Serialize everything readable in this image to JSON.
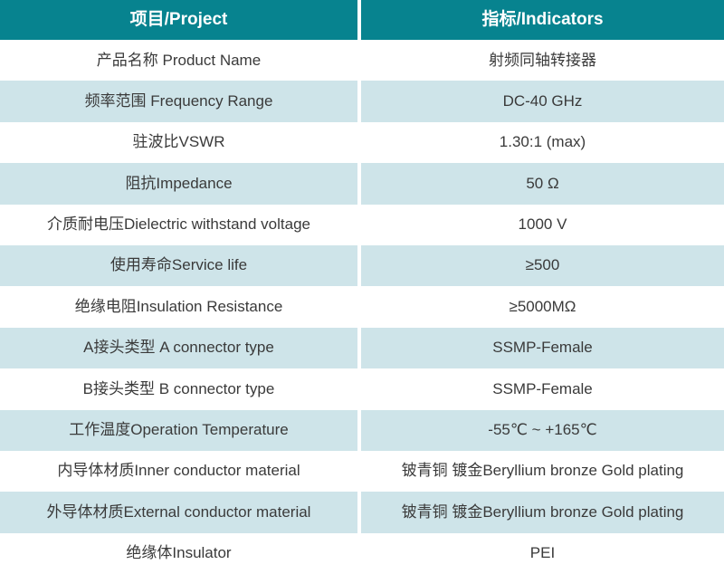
{
  "table": {
    "header": {
      "project": "项目/Project",
      "indicators": "指标/Indicators"
    },
    "rows": [
      {
        "project": "产品名称 Product Name",
        "indicator": "射频同轴转接器"
      },
      {
        "project": "频率范围 Frequency Range",
        "indicator": "DC-40 GHz"
      },
      {
        "project": "驻波比VSWR",
        "indicator": "1.30:1 (max)"
      },
      {
        "project": "阻抗Impedance",
        "indicator": "50 Ω"
      },
      {
        "project": "介质耐电压Dielectric withstand voltage",
        "indicator": "1000 V"
      },
      {
        "project": "使用寿命Service life",
        "indicator": "≥500"
      },
      {
        "project": "绝缘电阻Insulation Resistance",
        "indicator": "≥5000MΩ"
      },
      {
        "project": "A接头类型 A connector type",
        "indicator": "SSMP-Female"
      },
      {
        "project": "B接头类型 B connector type",
        "indicator": "SSMP-Female"
      },
      {
        "project": "工作温度Operation Temperature",
        "indicator": "-55℃ ~ +165℃"
      },
      {
        "project": "内导体材质Inner conductor material",
        "indicator": "铍青铜 镀金Beryllium bronze Gold plating"
      },
      {
        "project": "外导体材质External conductor material",
        "indicator": "铍青铜 镀金Beryllium bronze Gold plating"
      },
      {
        "project": "绝缘体Insulator",
        "indicator": "PEI"
      }
    ]
  },
  "colors": {
    "header_bg": "#07838F",
    "header_text": "#FFFFFF",
    "row_alt_bg": "#CEE4E9",
    "row_bg": "#FFFFFF",
    "body_text": "#3A3A3A",
    "divider": "#FFFFFF"
  }
}
